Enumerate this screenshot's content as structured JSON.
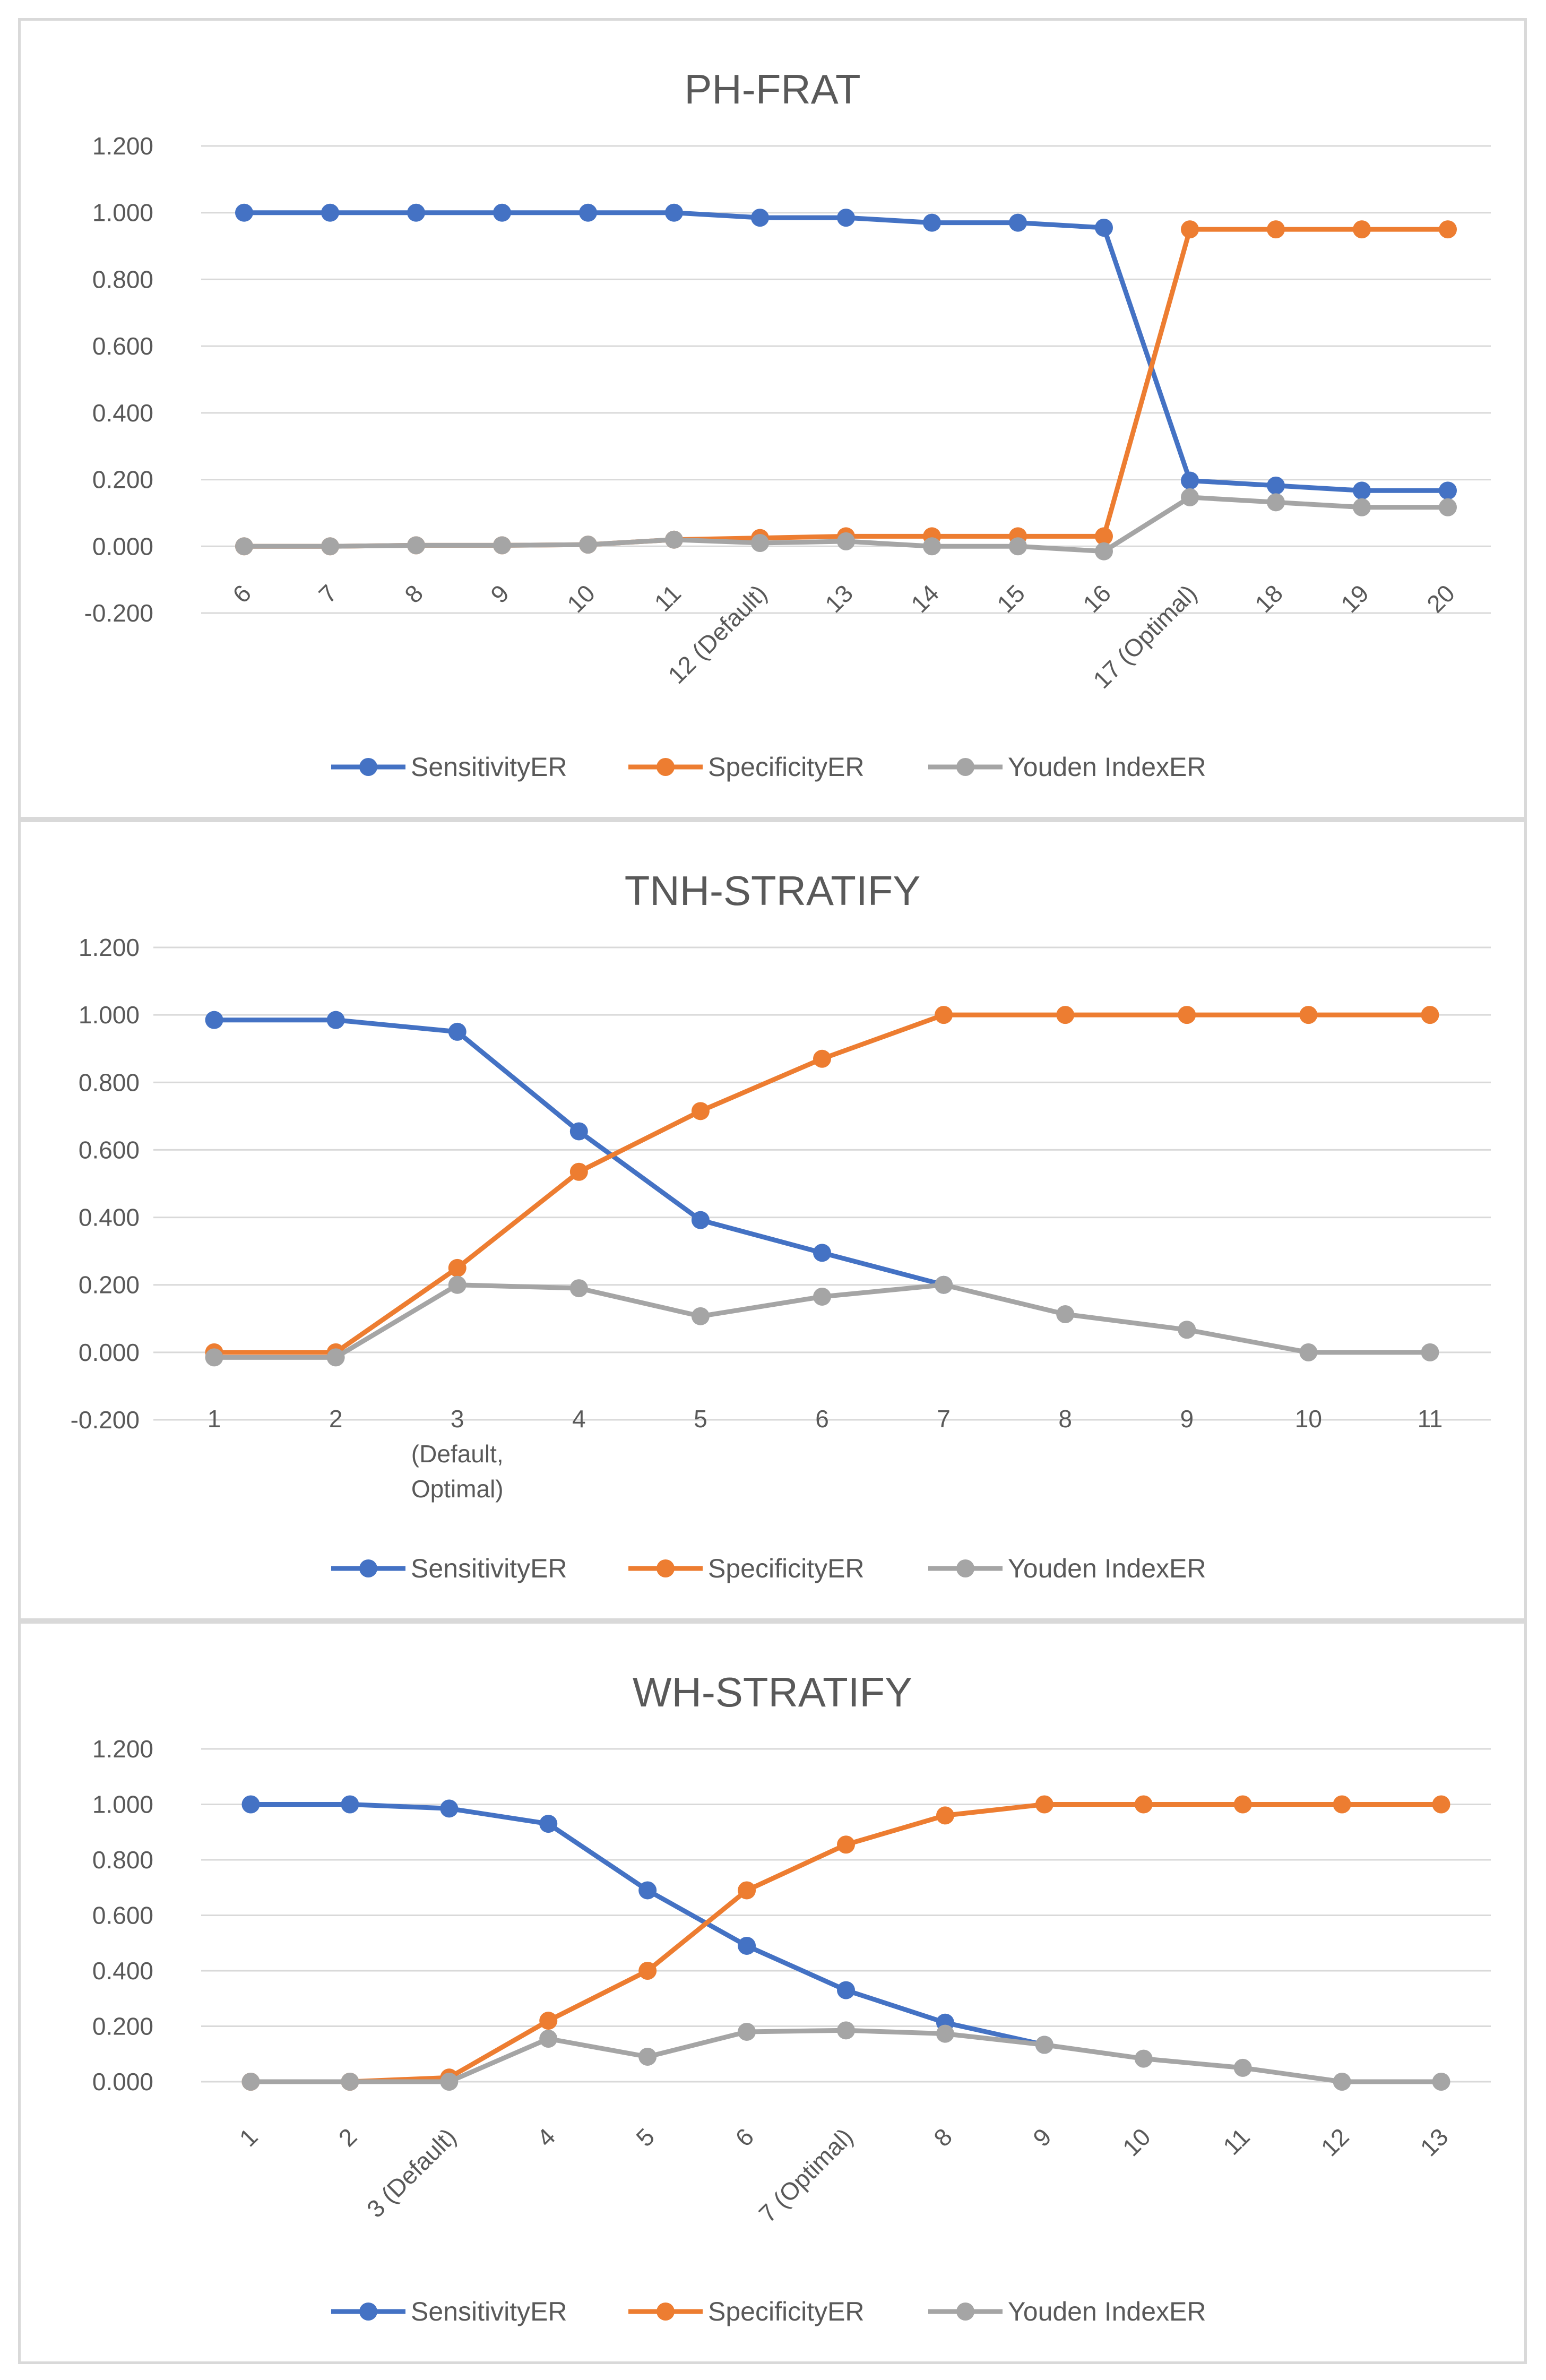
{
  "colors": {
    "sensitivity": "#4472c4",
    "specificity": "#ed7d31",
    "youden": "#a5a5a5",
    "gridline": "#d9d9d9",
    "text": "#595959"
  },
  "chart_data": [
    {
      "type": "line",
      "title": "PH-FRAT",
      "categories": [
        "6",
        "7",
        "8",
        "9",
        "10",
        "11",
        "12 (Default)",
        "13",
        "14",
        "15",
        "16",
        "17 (Optimal)",
        "18",
        "19",
        "20"
      ],
      "y_ticks": [
        "1.200",
        "1.000",
        "0.800",
        "0.600",
        "0.400",
        "0.200",
        "0.000",
        "-0.200"
      ],
      "ylim": [
        -0.2,
        1.2
      ],
      "grid": true,
      "legend_position": "bottom",
      "tick_label_rotation": "diagonal",
      "series": [
        {
          "name": "SensitivityER",
          "values": [
            1.0,
            1.0,
            1.0,
            1.0,
            1.0,
            1.0,
            0.985,
            0.985,
            0.97,
            0.97,
            0.955,
            0.197,
            0.182,
            0.167,
            0.167
          ]
        },
        {
          "name": "SpecificityER",
          "values": [
            0.0,
            0.0,
            0.003,
            0.003,
            0.005,
            0.02,
            0.025,
            0.03,
            0.03,
            0.03,
            0.03,
            0.95,
            0.95,
            0.95,
            0.95
          ]
        },
        {
          "name": "Youden IndexER",
          "values": [
            0.0,
            0.0,
            0.003,
            0.003,
            0.005,
            0.02,
            0.01,
            0.015,
            0.0,
            0.0,
            -0.015,
            0.147,
            0.132,
            0.117,
            0.117
          ]
        }
      ]
    },
    {
      "type": "line",
      "title": "TNH-STRATIFY",
      "categories": [
        "1",
        "2",
        "3",
        "4",
        "5",
        "6",
        "7",
        "8",
        "9",
        "10",
        "11"
      ],
      "category_sublabels": {
        "2": [
          "(Default,",
          "Optimal)"
        ]
      },
      "y_ticks": [
        "1.200",
        "1.000",
        "0.800",
        "0.600",
        "0.400",
        "0.200",
        "0.000",
        "-0.200"
      ],
      "ylim": [
        -0.2,
        1.2
      ],
      "grid": true,
      "legend_position": "bottom",
      "tick_label_rotation": "none",
      "series": [
        {
          "name": "SensitivityER",
          "values": [
            0.985,
            0.985,
            0.95,
            0.655,
            0.392,
            0.295,
            0.2,
            null,
            null,
            null,
            null
          ]
        },
        {
          "name": "SpecificityER",
          "values": [
            0.0,
            0.0,
            0.25,
            0.535,
            0.715,
            0.87,
            1.0,
            1.0,
            1.0,
            1.0,
            1.0
          ]
        },
        {
          "name": "Youden IndexER",
          "values": [
            -0.015,
            -0.015,
            0.2,
            0.19,
            0.107,
            0.165,
            0.2,
            0.113,
            0.067,
            0.0,
            0.0
          ]
        }
      ]
    },
    {
      "type": "line",
      "title": "WH-STRATIFY",
      "categories": [
        "1",
        "2",
        "3 (Default)",
        "4",
        "5",
        "6",
        "7 (Optimal)",
        "8",
        "9",
        "10",
        "11",
        "12",
        "13"
      ],
      "y_ticks": [
        "1.200",
        "1.000",
        "0.800",
        "0.600",
        "0.400",
        "0.200",
        "0.000"
      ],
      "ylim": [
        0,
        1.2
      ],
      "grid": true,
      "legend_position": "bottom",
      "tick_label_rotation": "diagonal",
      "series": [
        {
          "name": "SensitivityER",
          "values": [
            1.0,
            1.0,
            0.985,
            0.93,
            0.69,
            0.49,
            0.33,
            0.213,
            0.133,
            null,
            null,
            null,
            null
          ]
        },
        {
          "name": "SpecificityER",
          "values": [
            0.0,
            0.0,
            0.015,
            0.22,
            0.4,
            0.69,
            0.855,
            0.96,
            1.0,
            1.0,
            1.0,
            1.0,
            1.0
          ]
        },
        {
          "name": "Youden IndexER",
          "values": [
            0.0,
            0.0,
            0.0,
            0.155,
            0.09,
            0.18,
            0.185,
            0.173,
            0.133,
            0.083,
            0.05,
            0.0,
            0.0
          ]
        }
      ]
    }
  ]
}
